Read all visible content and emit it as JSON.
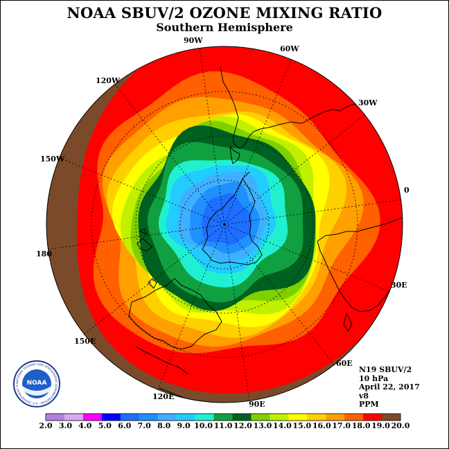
{
  "title": "NOAA SBUV/2 OZONE MIXING RATIO",
  "subtitle": "Southern Hemisphere",
  "logo_text": "NOAA",
  "logo_ring_text": "NATIONAL OCEANIC AND ATMOSPHERIC ADMINISTRATION · U.S. DEPARTMENT OF COMMERCE",
  "longitude_labels": {
    "w90": "90W",
    "w60": "60W",
    "w30": "30W",
    "zero": "0",
    "w120": "120W",
    "w150": "150W",
    "e180": "180",
    "e30": "30E",
    "e60": "60E",
    "e90": "90E",
    "e120": "120E",
    "e150": "150E"
  },
  "info": {
    "instrument": "N19 SBUV/2",
    "level": "10 hPa",
    "date": "April 22, 2017",
    "version": "v8",
    "units": "PPM"
  },
  "colorbar": {
    "labels": [
      "2.0",
      "3.0",
      "4.0",
      "5.0",
      "6.0",
      "7.0",
      "8.0",
      "9.0",
      "10.0",
      "11.0",
      "12.0",
      "13.0",
      "14.0",
      "15.0",
      "16.0",
      "17.0",
      "18.0",
      "19.0",
      "20.0"
    ],
    "colors": [
      "#b57fe0",
      "#d8a8f0",
      "#ff00ff",
      "#0000ff",
      "#1e6eff",
      "#1e90ff",
      "#3fb0ff",
      "#22ccff",
      "#20f0d0",
      "#10a040",
      "#006020",
      "#80d000",
      "#c0f000",
      "#ffff00",
      "#ffd000",
      "#ffa000",
      "#ff6000",
      "#ff0000",
      "#7a4a2a"
    ]
  },
  "map_data": {
    "projection": "south polar stereographic",
    "field": "ozone mixing ratio",
    "rings": [
      {
        "level": "19.0",
        "color": "#ff0000"
      },
      {
        "level": "18.0",
        "color": "#ff6000"
      },
      {
        "level": "17.0",
        "color": "#ffa000"
      },
      {
        "level": "16.0",
        "color": "#ffd000"
      },
      {
        "level": "15.0",
        "color": "#ffff00"
      },
      {
        "level": "14.0",
        "color": "#c0f000"
      },
      {
        "level": "13.0",
        "color": "#80d000"
      },
      {
        "level": "12.0",
        "color": "#006020"
      },
      {
        "level": "11.0",
        "color": "#10a040"
      },
      {
        "level": "10.0",
        "color": "#20f0d0"
      },
      {
        "level": "9.0",
        "color": "#22ccff"
      },
      {
        "level": "8.0",
        "color": "#3fb0ff"
      },
      {
        "level": "7.0",
        "color": "#1e90ff"
      },
      {
        "level": "6.0",
        "color": "#1e6eff"
      }
    ],
    "outer_color": "#7a4a2a"
  }
}
